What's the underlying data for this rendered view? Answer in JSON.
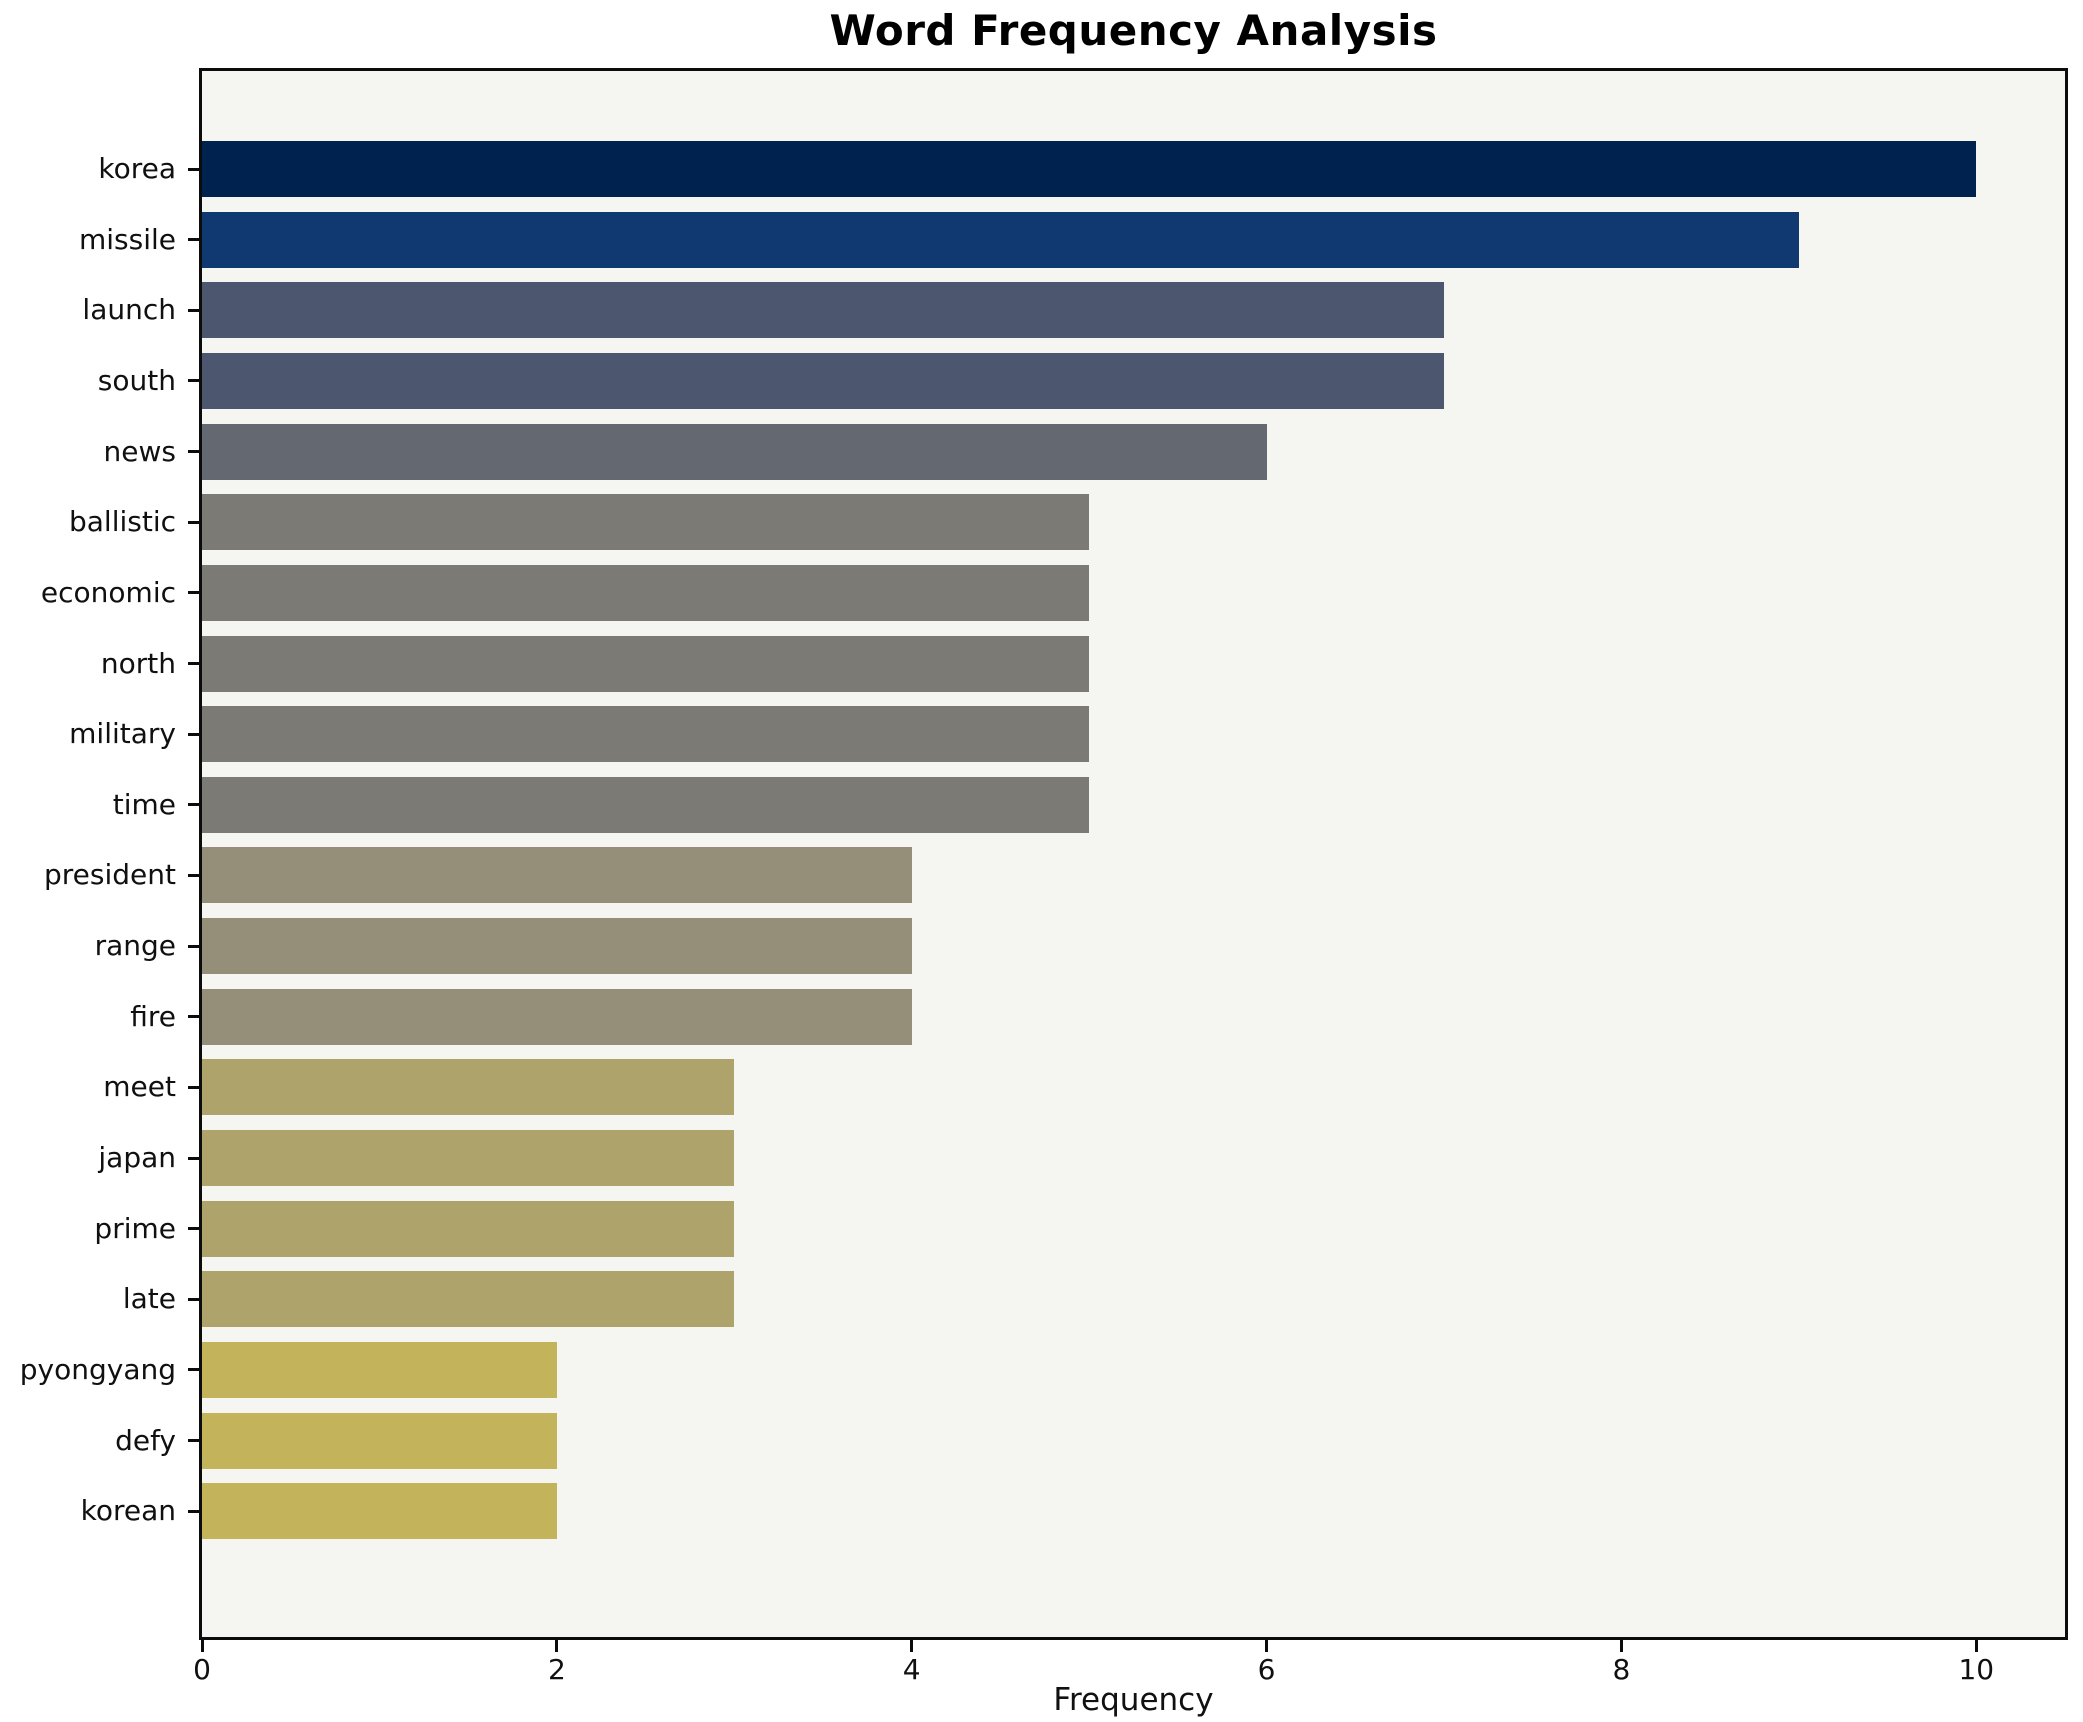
{
  "title": "Word Frequency Analysis",
  "chart_data": {
    "type": "bar",
    "orientation": "horizontal",
    "title": "Word Frequency Analysis",
    "xlabel": "Frequency",
    "ylabel": "",
    "categories": [
      "korea",
      "missile",
      "launch",
      "south",
      "news",
      "ballistic",
      "economic",
      "north",
      "military",
      "time",
      "president",
      "range",
      "fire",
      "meet",
      "japan",
      "prime",
      "late",
      "pyongyang",
      "defy",
      "korean"
    ],
    "values": [
      10,
      9,
      7,
      7,
      6,
      5,
      5,
      5,
      5,
      5,
      4,
      4,
      4,
      3,
      3,
      3,
      3,
      2,
      2,
      2
    ],
    "bar_colors": [
      "#00224e",
      "#0f3970",
      "#4c566e",
      "#4c566e",
      "#646871",
      "#7b7a75",
      "#7b7a75",
      "#7b7a75",
      "#7b7a75",
      "#7b7a75",
      "#958e78",
      "#958e78",
      "#958e78",
      "#aea36b",
      "#aea36b",
      "#aea36b",
      "#aea36b",
      "#c3b45c",
      "#c3b45c",
      "#c3b45c"
    ],
    "xlim": [
      0,
      10.5
    ],
    "x_ticks": [
      0,
      2,
      4,
      6,
      8,
      10
    ],
    "x_tick_labels": [
      "0",
      "2",
      "4",
      "6",
      "8",
      "10"
    ],
    "grid": false,
    "legend": null,
    "plot_background": "#f5f5f2",
    "figure_background": "#ffffff"
  }
}
